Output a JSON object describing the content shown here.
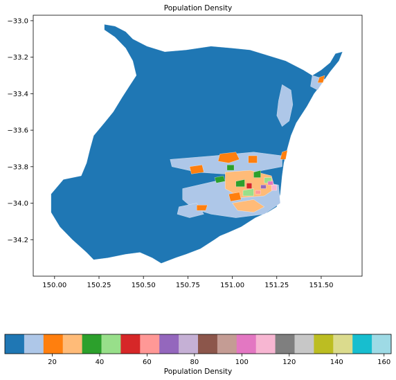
{
  "chart_data": [
    {
      "type": "choropleth",
      "title": "Population Density",
      "xlabel": "",
      "ylabel": "",
      "xlim": [
        149.88,
        151.73
      ],
      "ylim": [
        -34.4,
        -32.97
      ],
      "xticks": [
        150.0,
        150.25,
        150.5,
        150.75,
        151.0,
        151.25,
        151.5
      ],
      "xtick_labels": [
        "150.00",
        "150.25",
        "150.50",
        "150.75",
        "151.00",
        "151.25",
        "151.50"
      ],
      "yticks": [
        -33.0,
        -33.2,
        -33.4,
        -33.6,
        -33.8,
        -34.0,
        -34.2
      ],
      "ytick_labels": [
        "−33.0",
        "−33.2",
        "−33.4",
        "−33.6",
        "−33.8",
        "−34.0",
        "−34.2"
      ],
      "outline": [
        [
          150.28,
          -33.02
        ],
        [
          150.34,
          -33.03
        ],
        [
          150.4,
          -33.06
        ],
        [
          150.44,
          -33.1
        ],
        [
          150.52,
          -33.14
        ],
        [
          150.62,
          -33.17
        ],
        [
          150.74,
          -33.16
        ],
        [
          150.88,
          -33.14
        ],
        [
          151.0,
          -33.15
        ],
        [
          151.1,
          -33.16
        ],
        [
          151.2,
          -33.19
        ],
        [
          151.3,
          -33.22
        ],
        [
          151.4,
          -33.27
        ],
        [
          151.45,
          -33.3
        ],
        [
          151.5,
          -33.27
        ],
        [
          151.55,
          -33.23
        ],
        [
          151.58,
          -33.18
        ],
        [
          151.62,
          -33.17
        ],
        [
          151.6,
          -33.22
        ],
        [
          151.55,
          -33.28
        ],
        [
          151.5,
          -33.35
        ],
        [
          151.46,
          -33.4
        ],
        [
          151.42,
          -33.47
        ],
        [
          151.36,
          -33.56
        ],
        [
          151.33,
          -33.63
        ],
        [
          151.31,
          -33.7
        ],
        [
          151.29,
          -33.78
        ],
        [
          151.28,
          -33.85
        ],
        [
          151.27,
          -33.95
        ],
        [
          151.25,
          -34.02
        ],
        [
          151.2,
          -34.05
        ],
        [
          151.13,
          -34.08
        ],
        [
          151.05,
          -34.13
        ],
        [
          150.98,
          -34.16
        ],
        [
          150.93,
          -34.18
        ],
        [
          150.9,
          -34.2
        ],
        [
          150.82,
          -34.25
        ],
        [
          150.74,
          -34.28
        ],
        [
          150.68,
          -34.3
        ],
        [
          150.6,
          -34.33
        ],
        [
          150.55,
          -34.3
        ],
        [
          150.48,
          -34.27
        ],
        [
          150.4,
          -34.28
        ],
        [
          150.3,
          -34.3
        ],
        [
          150.22,
          -34.31
        ],
        [
          150.18,
          -34.27
        ],
        [
          150.1,
          -34.2
        ],
        [
          150.03,
          -34.13
        ],
        [
          149.98,
          -34.05
        ],
        [
          149.98,
          -33.95
        ],
        [
          150.05,
          -33.87
        ],
        [
          150.15,
          -33.85
        ],
        [
          150.18,
          -33.78
        ],
        [
          150.2,
          -33.7
        ],
        [
          150.22,
          -33.63
        ],
        [
          150.28,
          -33.56
        ],
        [
          150.33,
          -33.5
        ],
        [
          150.38,
          -33.42
        ],
        [
          150.42,
          -33.36
        ],
        [
          150.46,
          -33.3
        ],
        [
          150.44,
          -33.22
        ],
        [
          150.4,
          -33.15
        ],
        [
          150.34,
          -33.09
        ],
        [
          150.28,
          -33.05
        ]
      ],
      "urban_patches": [
        {
          "class": 1,
          "points": [
            [
              150.65,
              -33.76
            ],
            [
              150.9,
              -33.74
            ],
            [
              151.12,
              -33.72
            ],
            [
              151.28,
              -33.74
            ],
            [
              151.28,
              -33.8
            ],
            [
              151.12,
              -33.83
            ],
            [
              150.95,
              -33.84
            ],
            [
              150.8,
              -33.83
            ],
            [
              150.66,
              -33.8
            ]
          ]
        },
        {
          "class": 1,
          "points": [
            [
              150.72,
              -33.92
            ],
            [
              150.9,
              -33.88
            ],
            [
              151.1,
              -33.87
            ],
            [
              151.26,
              -33.9
            ],
            [
              151.27,
              -34.0
            ],
            [
              151.18,
              -34.06
            ],
            [
              151.02,
              -34.08
            ],
            [
              150.88,
              -34.06
            ],
            [
              150.78,
              -34.03
            ],
            [
              150.72,
              -33.98
            ]
          ]
        },
        {
          "class": 1,
          "points": [
            [
              151.28,
              -33.35
            ],
            [
              151.33,
              -33.38
            ],
            [
              151.34,
              -33.46
            ],
            [
              151.32,
              -33.55
            ],
            [
              151.28,
              -33.58
            ],
            [
              151.25,
              -33.52
            ],
            [
              151.26,
              -33.44
            ]
          ]
        },
        {
          "class": 1,
          "points": [
            [
              151.45,
              -33.3
            ],
            [
              151.52,
              -33.32
            ],
            [
              151.48,
              -33.38
            ],
            [
              151.44,
              -33.36
            ]
          ]
        },
        {
          "class": 1,
          "points": [
            [
              150.7,
              -34.02
            ],
            [
              150.8,
              -34.0
            ],
            [
              150.84,
              -34.06
            ],
            [
              150.76,
              -34.08
            ],
            [
              150.69,
              -34.06
            ]
          ]
        },
        {
          "class": 3,
          "points": [
            [
              150.96,
              -33.83
            ],
            [
              151.1,
              -33.82
            ],
            [
              151.22,
              -33.85
            ],
            [
              151.24,
              -33.92
            ],
            [
              151.18,
              -33.96
            ],
            [
              151.05,
              -33.97
            ],
            [
              150.96,
              -33.92
            ]
          ]
        },
        {
          "class": 3,
          "points": [
            [
              151.0,
              -34.0
            ],
            [
              151.12,
              -33.98
            ],
            [
              151.18,
              -34.02
            ],
            [
              151.12,
              -34.05
            ],
            [
              151.03,
              -34.04
            ]
          ]
        },
        {
          "class": 2,
          "points": [
            [
              150.93,
              -33.73
            ],
            [
              151.02,
              -33.72
            ],
            [
              151.04,
              -33.76
            ],
            [
              150.98,
              -33.78
            ],
            [
              150.92,
              -33.77
            ]
          ]
        },
        {
          "class": 2,
          "points": [
            [
              150.76,
              -33.8
            ],
            [
              150.83,
              -33.79
            ],
            [
              150.84,
              -33.83
            ],
            [
              150.77,
              -33.84
            ]
          ]
        },
        {
          "class": 2,
          "points": [
            [
              150.98,
              -33.95
            ],
            [
              151.04,
              -33.94
            ],
            [
              151.05,
              -33.98
            ],
            [
              150.99,
              -33.99
            ]
          ]
        },
        {
          "class": 2,
          "points": [
            [
              151.09,
              -33.74
            ],
            [
              151.14,
              -33.74
            ],
            [
              151.14,
              -33.78
            ],
            [
              151.09,
              -33.78
            ]
          ]
        },
        {
          "class": 2,
          "points": [
            [
              151.49,
              -33.31
            ],
            [
              151.52,
              -33.3
            ],
            [
              151.51,
              -33.34
            ],
            [
              151.48,
              -33.34
            ]
          ]
        },
        {
          "class": 2,
          "points": [
            [
              151.28,
              -33.72
            ],
            [
              151.31,
              -33.71
            ],
            [
              151.3,
              -33.76
            ],
            [
              151.27,
              -33.76
            ]
          ]
        },
        {
          "class": 2,
          "points": [
            [
              150.8,
              -34.01
            ],
            [
              150.86,
              -34.01
            ],
            [
              150.85,
              -34.04
            ],
            [
              150.8,
              -34.04
            ]
          ]
        },
        {
          "class": 4,
          "points": [
            [
              150.9,
              -33.86
            ],
            [
              150.95,
              -33.85
            ],
            [
              150.96,
              -33.88
            ],
            [
              150.91,
              -33.89
            ]
          ]
        },
        {
          "class": 4,
          "points": [
            [
              151.02,
              -33.88
            ],
            [
              151.07,
              -33.87
            ],
            [
              151.07,
              -33.91
            ],
            [
              151.02,
              -33.91
            ]
          ]
        },
        {
          "class": 4,
          "points": [
            [
              151.12,
              -33.83
            ],
            [
              151.16,
              -33.82
            ],
            [
              151.16,
              -33.86
            ],
            [
              151.12,
              -33.86
            ]
          ]
        },
        {
          "class": 4,
          "points": [
            [
              150.97,
              -33.79
            ],
            [
              151.01,
              -33.79
            ],
            [
              151.01,
              -33.82
            ],
            [
              150.97,
              -33.82
            ]
          ]
        },
        {
          "class": 5,
          "points": [
            [
              151.06,
              -33.93
            ],
            [
              151.12,
              -33.92
            ],
            [
              151.12,
              -33.96
            ],
            [
              151.06,
              -33.96
            ]
          ]
        },
        {
          "class": 5,
          "points": [
            [
              151.18,
              -33.86
            ],
            [
              151.22,
              -33.86
            ],
            [
              151.22,
              -33.89
            ],
            [
              151.18,
              -33.89
            ]
          ]
        },
        {
          "class": 6,
          "points": [
            [
              151.08,
              -33.89
            ],
            [
              151.11,
              -33.89
            ],
            [
              151.11,
              -33.92
            ],
            [
              151.08,
              -33.92
            ]
          ]
        },
        {
          "class": 7,
          "points": [
            [
              151.13,
              -33.93
            ],
            [
              151.16,
              -33.93
            ],
            [
              151.16,
              -33.95
            ],
            [
              151.13,
              -33.95
            ]
          ]
        },
        {
          "class": 8,
          "points": [
            [
              151.16,
              -33.9
            ],
            [
              151.19,
              -33.9
            ],
            [
              151.19,
              -33.92
            ],
            [
              151.16,
              -33.92
            ]
          ]
        },
        {
          "class": 12,
          "points": [
            [
              151.2,
              -33.88
            ],
            [
              151.23,
              -33.88
            ],
            [
              151.23,
              -33.9
            ],
            [
              151.2,
              -33.9
            ]
          ]
        },
        {
          "class": 13,
          "points": [
            [
              151.22,
              -33.9
            ],
            [
              151.25,
              -33.9
            ],
            [
              151.25,
              -33.93
            ],
            [
              151.22,
              -33.93
            ]
          ]
        }
      ],
      "colorbar": {
        "label": "Population Density",
        "range": [
          0,
          163
        ],
        "ticks": [
          20,
          40,
          60,
          80,
          100,
          120,
          140,
          160
        ],
        "colors": [
          "#1f77b4",
          "#aec7e8",
          "#ff7f0e",
          "#ffbb78",
          "#2ca02c",
          "#98df8a",
          "#d62728",
          "#ff9896",
          "#9467bd",
          "#c5b0d5",
          "#8c564b",
          "#c49c94",
          "#e377c2",
          "#f7b6d2",
          "#7f7f7f",
          "#c7c7c7",
          "#bcbd22",
          "#dbdb8d",
          "#17becf",
          "#9edae5"
        ]
      }
    }
  ]
}
